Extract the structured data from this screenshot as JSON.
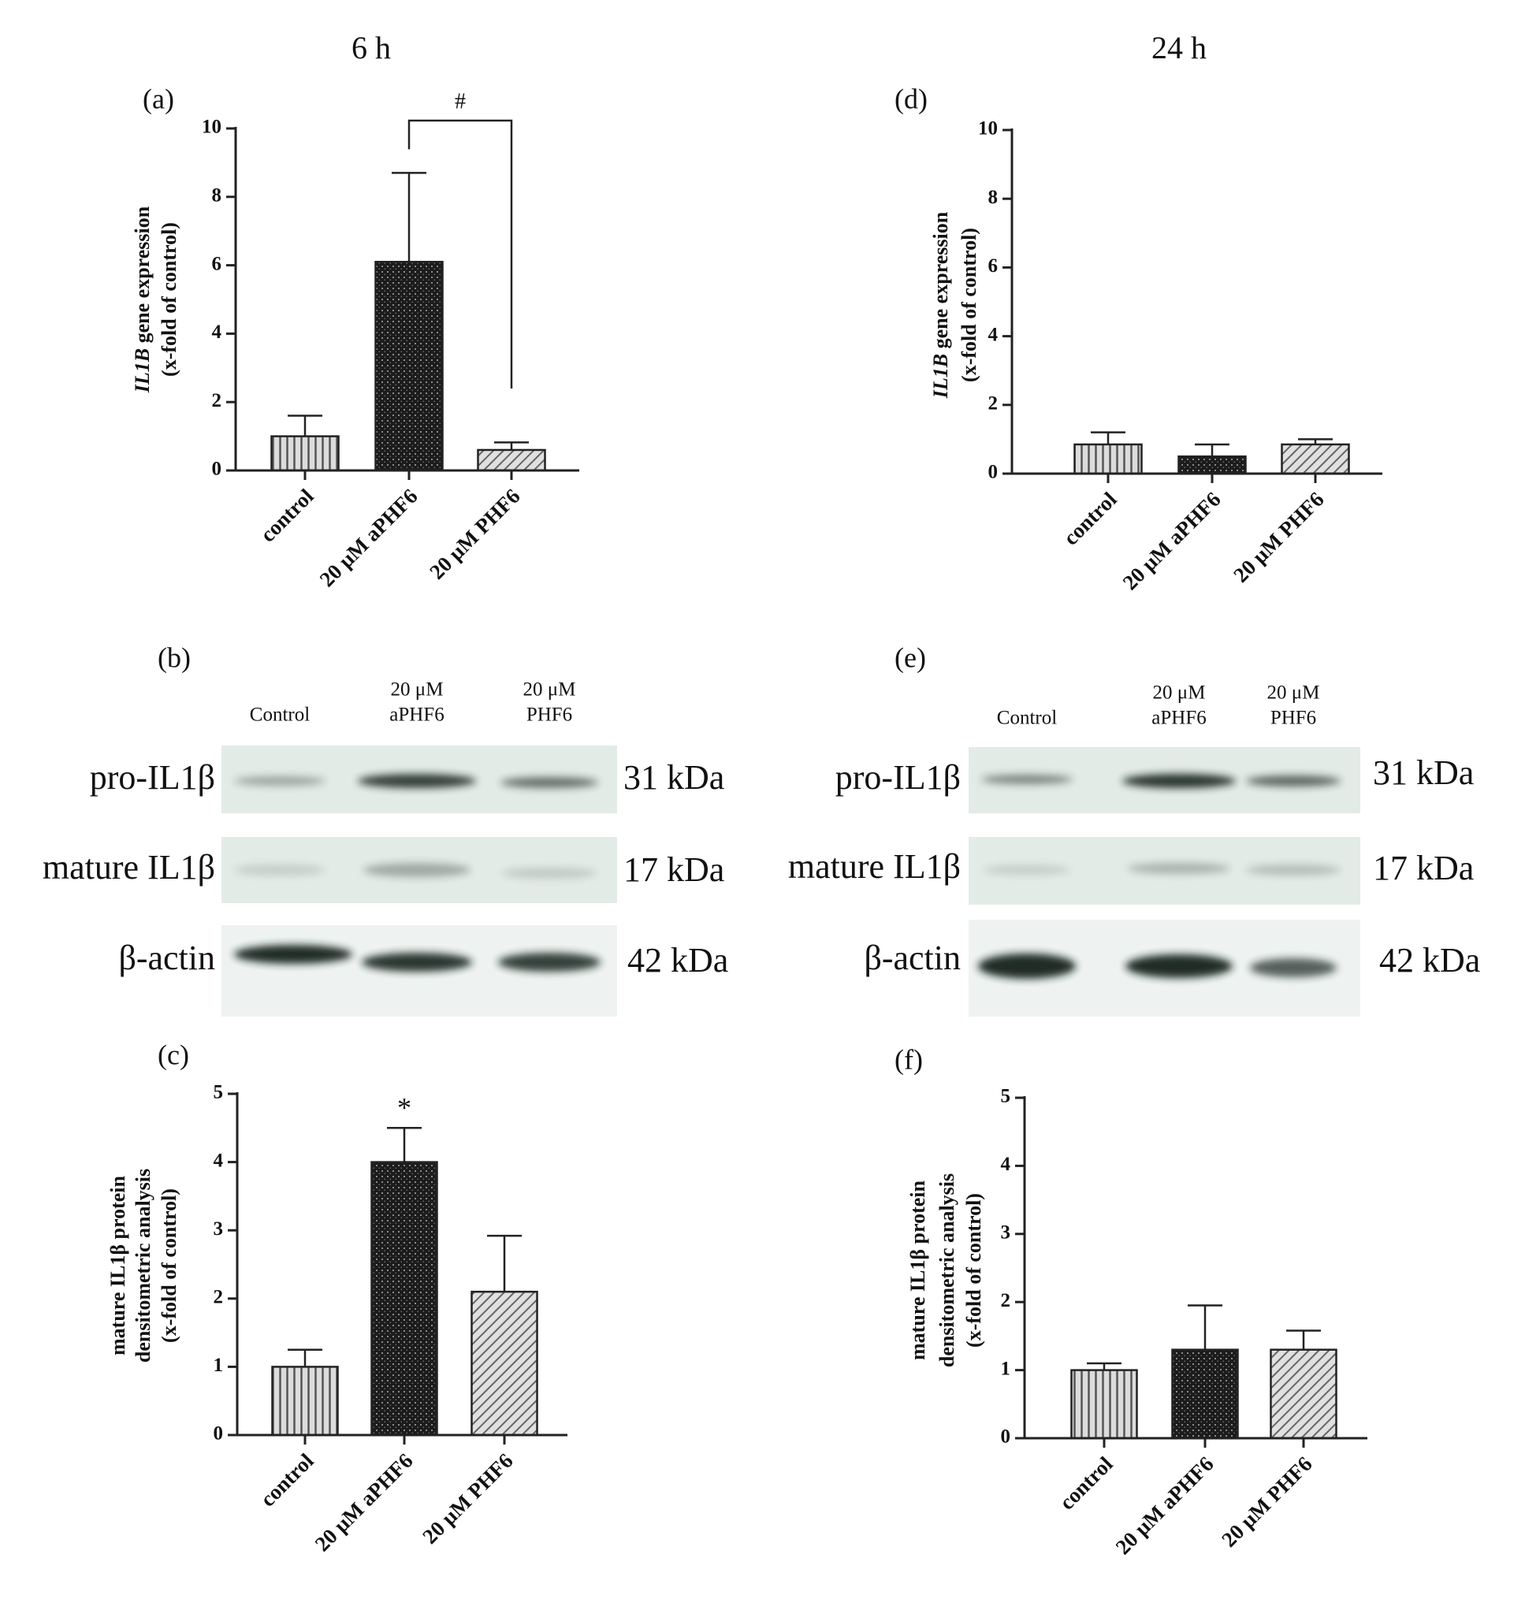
{
  "headings": [
    "6 h",
    "24 h"
  ],
  "chart_data": [
    {
      "type": "bar",
      "panel": "(a)",
      "ylabel": [
        [
          {
            "text": "IL1B",
            "italic": true
          },
          {
            "text": " gene expression"
          }
        ],
        [
          {
            "text": "(x-fold of control)"
          }
        ]
      ],
      "categories": [
        "control",
        "20 μM aPHF6",
        "20 μM PHF6"
      ],
      "values": [
        1.0,
        6.1,
        0.6
      ],
      "errors": [
        0.6,
        2.6,
        0.22
      ],
      "patterns": [
        "vlines",
        "mesh",
        "hatch"
      ],
      "ylim": [
        0,
        10
      ],
      "yticks": [
        0,
        2,
        4,
        6,
        8,
        10
      ],
      "annotations": [
        {
          "text": "#",
          "between": [
            1,
            2
          ]
        }
      ]
    },
    {
      "type": "bar",
      "panel": "(d)",
      "ylabel": [
        [
          {
            "text": "IL1B",
            "italic": true
          },
          {
            "text": " gene expression"
          }
        ],
        [
          {
            "text": "(x-fold of control)"
          }
        ]
      ],
      "categories": [
        "control",
        "20 μM aPHF6",
        "20 μM PHF6"
      ],
      "values": [
        0.85,
        0.5,
        0.85
      ],
      "errors": [
        0.35,
        0.35,
        0.15
      ],
      "patterns": [
        "vlines",
        "mesh",
        "hatch"
      ],
      "ylim": [
        0,
        10
      ],
      "yticks": [
        0,
        2,
        4,
        6,
        8,
        10
      ]
    },
    {
      "type": "bar",
      "panel": "(c)",
      "ylabel": [
        [
          {
            "text": "mature IL1β protein"
          }
        ],
        [
          {
            "text": "densitometric analysis"
          }
        ],
        [
          {
            "text": "(x-fold of control)"
          }
        ]
      ],
      "categories": [
        "control",
        "20 μM aPHF6",
        "20 μM PHF6"
      ],
      "values": [
        1.0,
        4.0,
        2.1
      ],
      "errors": [
        0.25,
        0.5,
        0.82
      ],
      "patterns": [
        "vlines",
        "mesh",
        "hatch"
      ],
      "ylim": [
        0,
        5
      ],
      "yticks": [
        0,
        1,
        2,
        3,
        4,
        5
      ],
      "annotations": [
        {
          "text": "*",
          "over": 1
        }
      ]
    },
    {
      "type": "bar",
      "panel": "(f)",
      "ylabel": [
        [
          {
            "text": "mature IL1β protein"
          }
        ],
        [
          {
            "text": "densitometric analysis"
          }
        ],
        [
          {
            "text": "(x-fold of control)"
          }
        ]
      ],
      "categories": [
        "control",
        "20 μM aPHF6",
        "20 μM PHF6"
      ],
      "values": [
        1.0,
        1.3,
        1.3
      ],
      "errors": [
        0.1,
        0.65,
        0.28
      ],
      "patterns": [
        "vlines",
        "mesh",
        "hatch"
      ],
      "ylim": [
        0,
        5
      ],
      "yticks": [
        0,
        1,
        2,
        3,
        4,
        5
      ]
    }
  ],
  "blots": [
    {
      "panel": "(b)",
      "lanes": [
        [
          "Control"
        ],
        [
          "20 μM",
          "aPHF6"
        ],
        [
          "20 μM",
          "PHF6"
        ]
      ],
      "rows": [
        {
          "protein": "pro-IL1β",
          "size": "31 kDa"
        },
        {
          "protein": "mature IL1β",
          "size": "17 kDa"
        },
        {
          "protein": "β-actin",
          "size": "42 kDa"
        }
      ]
    },
    {
      "panel": "(e)",
      "lanes": [
        [
          "Control"
        ],
        [
          "20 μM",
          "aPHF6"
        ],
        [
          "20 μM",
          "PHF6"
        ]
      ],
      "rows": [
        {
          "protein": "pro-IL1β",
          "size": "31 kDa"
        },
        {
          "protein": "mature IL1β",
          "size": "17 kDa"
        },
        {
          "protein": "β-actin",
          "size": "42 kDa"
        }
      ]
    }
  ]
}
